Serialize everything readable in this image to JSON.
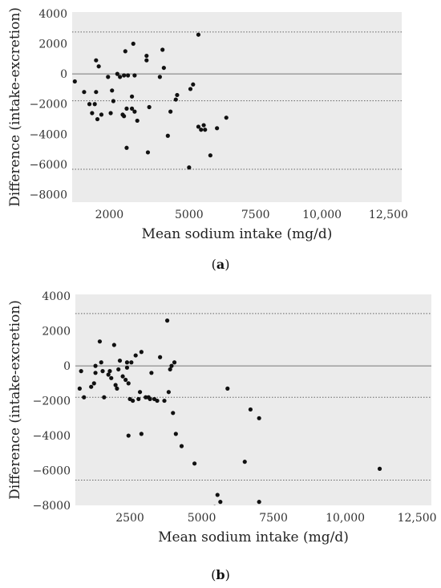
{
  "chart_data": [
    {
      "type": "scatter",
      "caption": "a",
      "xlabel": "Mean sodium intake (mg/d)",
      "ylabel": "Difference (intake-excretion)",
      "xlim": [
        600,
        13000
      ],
      "ylim": [
        -8500,
        4100
      ],
      "xticks": [
        2000,
        5000,
        7500,
        10000,
        12500
      ],
      "xtick_labels": [
        "2000",
        "5000",
        "7500",
        "10,000",
        "12,500"
      ],
      "yticks": [
        4000,
        2000,
        0,
        -2000,
        -4000,
        -6000,
        -8000
      ],
      "ytick_labels": [
        "4000",
        "2000",
        "0",
        "−2000",
        "−4000",
        "−6000",
        "−8000"
      ],
      "zero_line": 0,
      "limit_lines": [
        2780,
        -1780,
        -6320
      ],
      "grid": false,
      "points": [
        [
          700,
          -500
        ],
        [
          1050,
          -1200
        ],
        [
          1250,
          -2000
        ],
        [
          1350,
          -2600
        ],
        [
          1450,
          -2000
        ],
        [
          1500,
          900
        ],
        [
          1500,
          -1200
        ],
        [
          1550,
          -3000
        ],
        [
          1600,
          500
        ],
        [
          1700,
          -2700
        ],
        [
          1950,
          -200
        ],
        [
          2050,
          -2600
        ],
        [
          2100,
          -1100
        ],
        [
          2150,
          -1800
        ],
        [
          2300,
          0
        ],
        [
          2400,
          -200
        ],
        [
          2500,
          -2700
        ],
        [
          2550,
          -2800
        ],
        [
          2550,
          -100
        ],
        [
          2600,
          1500
        ],
        [
          2650,
          -4900
        ],
        [
          2650,
          -2300
        ],
        [
          2700,
          -100
        ],
        [
          2850,
          -2300
        ],
        [
          2850,
          -1500
        ],
        [
          2900,
          2000
        ],
        [
          2950,
          -2500
        ],
        [
          2950,
          -100
        ],
        [
          3050,
          -3100
        ],
        [
          3400,
          1200
        ],
        [
          3400,
          900
        ],
        [
          3450,
          -5200
        ],
        [
          3500,
          -2200
        ],
        [
          3900,
          -200
        ],
        [
          4000,
          1600
        ],
        [
          4050,
          400
        ],
        [
          4200,
          -4100
        ],
        [
          4300,
          -2500
        ],
        [
          4500,
          -1700
        ],
        [
          4550,
          -1400
        ],
        [
          5000,
          -6200
        ],
        [
          5050,
          -1000
        ],
        [
          5150,
          -700
        ],
        [
          5350,
          2600
        ],
        [
          5350,
          -3500
        ],
        [
          5450,
          -3700
        ],
        [
          5550,
          -3400
        ],
        [
          5600,
          -3700
        ],
        [
          5800,
          -5400
        ],
        [
          6050,
          -3600
        ],
        [
          6400,
          -2900
        ]
      ]
    },
    {
      "type": "scatter",
      "caption": "b",
      "xlabel": "Mean sodium intake (mg/d)",
      "ylabel": "Difference (intake-excretion)",
      "xlim": [
        600,
        13000
      ],
      "ylim": [
        -8000,
        4100
      ],
      "xticks": [
        2500,
        5000,
        7500,
        10000,
        12500
      ],
      "xtick_labels": [
        "2500",
        "5000",
        "7500",
        "10,000",
        "12,500"
      ],
      "yticks": [
        4000,
        2000,
        0,
        -2000,
        -4000,
        -6000,
        -8000
      ],
      "ytick_labels": [
        "4000",
        "2000",
        "0",
        "−2000",
        "−4000",
        "−6000",
        "−8000"
      ],
      "zero_line": 0,
      "limit_lines": [
        3000,
        -1800,
        -6550
      ],
      "grid": false,
      "points": [
        [
          750,
          -1300
        ],
        [
          800,
          -300
        ],
        [
          900,
          -1800
        ],
        [
          1150,
          -1200
        ],
        [
          1250,
          -1000
        ],
        [
          1300,
          -400
        ],
        [
          1300,
          0
        ],
        [
          1450,
          1400
        ],
        [
          1500,
          200
        ],
        [
          1550,
          -300
        ],
        [
          1600,
          -1800
        ],
        [
          1750,
          -500
        ],
        [
          1800,
          -300
        ],
        [
          1850,
          -700
        ],
        [
          1950,
          1200
        ],
        [
          2000,
          -1100
        ],
        [
          2050,
          -1300
        ],
        [
          2100,
          -200
        ],
        [
          2150,
          300
        ],
        [
          2250,
          -600
        ],
        [
          2350,
          -800
        ],
        [
          2400,
          -100
        ],
        [
          2400,
          200
        ],
        [
          2450,
          -1000
        ],
        [
          2450,
          -4000
        ],
        [
          2500,
          -1900
        ],
        [
          2550,
          200
        ],
        [
          2600,
          -2000
        ],
        [
          2700,
          600
        ],
        [
          2800,
          -1900
        ],
        [
          2850,
          -1500
        ],
        [
          2900,
          800
        ],
        [
          2900,
          -3900
        ],
        [
          3050,
          -1800
        ],
        [
          3150,
          -1800
        ],
        [
          3200,
          -1900
        ],
        [
          3250,
          -400
        ],
        [
          3350,
          -1900
        ],
        [
          3450,
          -2000
        ],
        [
          3550,
          500
        ],
        [
          3700,
          -2000
        ],
        [
          3800,
          2600
        ],
        [
          3850,
          -1500
        ],
        [
          3900,
          -200
        ],
        [
          3950,
          0
        ],
        [
          4000,
          -2700
        ],
        [
          4050,
          200
        ],
        [
          4100,
          -3900
        ],
        [
          4300,
          -4600
        ],
        [
          4750,
          -5600
        ],
        [
          5450,
          -8100
        ],
        [
          5550,
          -7400
        ],
        [
          5650,
          -7800
        ],
        [
          5900,
          -1300
        ],
        [
          6500,
          -5500
        ],
        [
          6700,
          -2500
        ],
        [
          7000,
          -3000
        ],
        [
          7000,
          -7800
        ],
        [
          11200,
          -5900
        ]
      ]
    }
  ]
}
